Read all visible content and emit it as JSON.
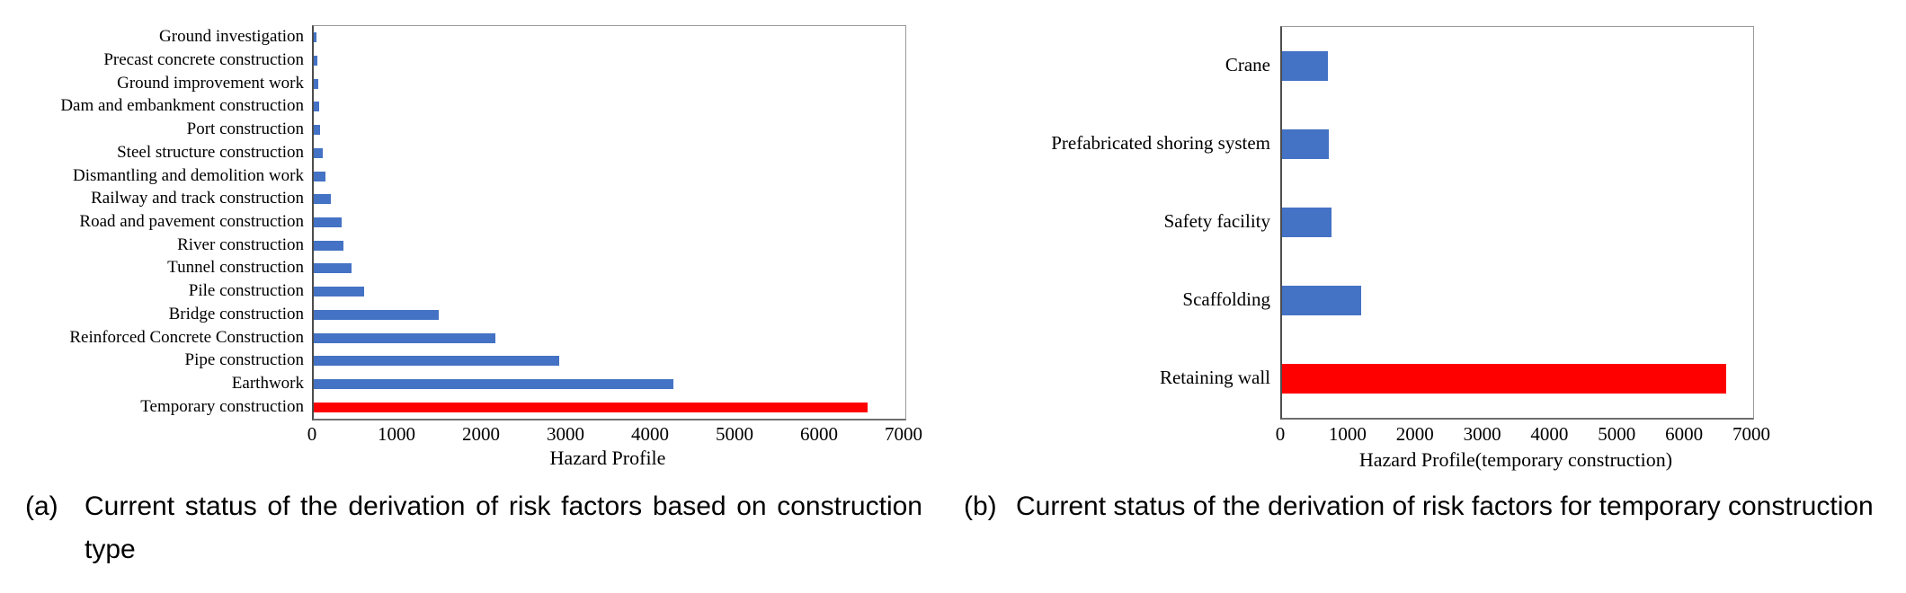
{
  "chart_data": [
    {
      "type": "bar",
      "orientation": "horizontal",
      "title": "",
      "xlabel": "Hazard Profile",
      "ylabel": "",
      "xlim": [
        0,
        7000
      ],
      "xticks": [
        0,
        1000,
        2000,
        3000,
        4000,
        5000,
        6000,
        7000
      ],
      "grid": false,
      "legend": null,
      "bar_color": "#4472C4",
      "highlight_color": "#FF0000",
      "highlight_index": 16,
      "categories": [
        "Ground investigation",
        "Precast concrete construction",
        "Ground improvement work",
        "Dam and embankment construction",
        "Port construction",
        "Steel structure construction",
        "Dismantling and demolition work",
        "Railway and track construction",
        "Road and pavement construction",
        "River construction",
        "Tunnel construction",
        "Pile construction",
        "Bridge construction",
        "Reinforced Concrete Construction",
        "Pipe construction",
        "Earthwork",
        "Temporary construction"
      ],
      "values": [
        30,
        40,
        50,
        65,
        75,
        110,
        140,
        205,
        335,
        350,
        445,
        600,
        1480,
        2150,
        2900,
        4250,
        6550
      ],
      "caption_marker": "(a)",
      "caption": "Current status of the derivation of risk factors based on construction type"
    },
    {
      "type": "bar",
      "orientation": "horizontal",
      "title": "",
      "xlabel": "Hazard Profile(temporary construction)",
      "ylabel": "",
      "xlim": [
        0,
        7000
      ],
      "xticks": [
        0,
        1000,
        2000,
        3000,
        4000,
        5000,
        6000,
        7000
      ],
      "grid": false,
      "legend": null,
      "bar_color": "#4472C4",
      "highlight_color": "#FF0000",
      "highlight_index": 4,
      "categories": [
        "Crane",
        "Prefabricated shoring system",
        "Safety facility",
        "Scaffolding",
        "Retaining wall"
      ],
      "values": [
        680,
        700,
        730,
        1170,
        6600
      ],
      "caption_marker": "(b)",
      "caption": "Current status of the derivation of risk factors for temporary construction"
    }
  ]
}
